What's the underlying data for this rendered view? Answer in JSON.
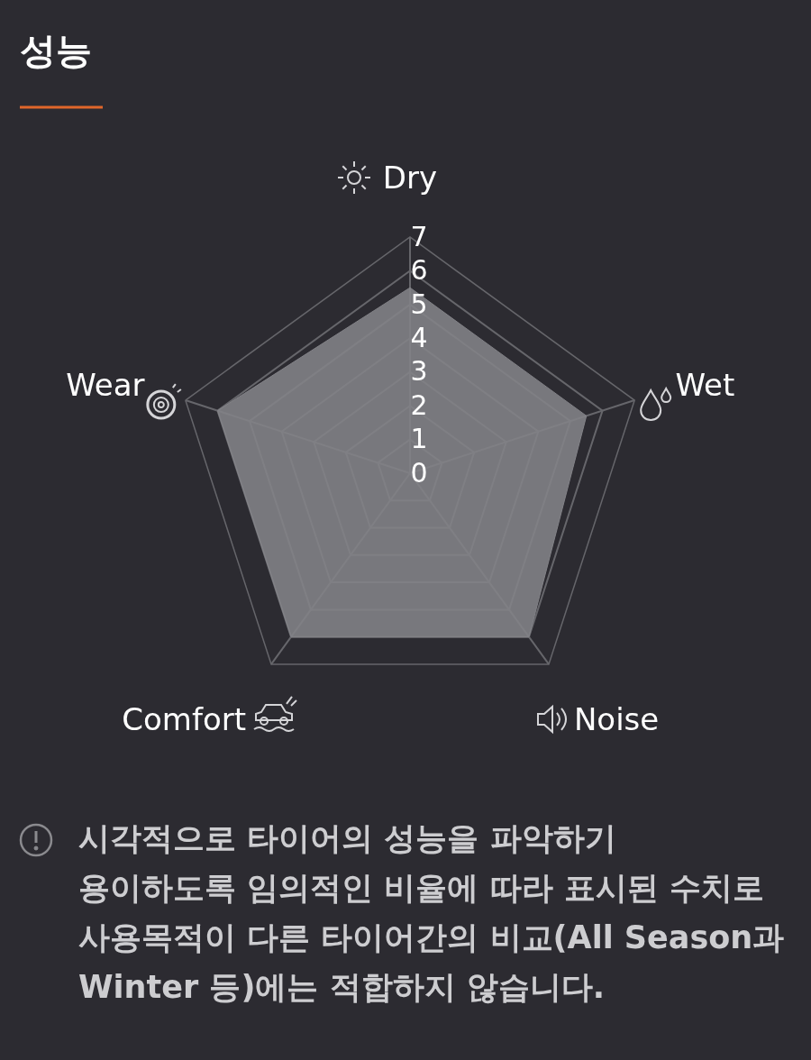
{
  "chart_data": {
    "type": "radar",
    "title": "성능",
    "categories": [
      "Dry",
      "Wet",
      "Noise",
      "Comfort",
      "Wear"
    ],
    "series": [
      {
        "color": "#838388",
        "values": [
          5.5,
          5.5,
          6,
          6,
          6
        ]
      }
    ],
    "ylim": [
      0,
      7
    ],
    "yticks": [
      0,
      1,
      2,
      3,
      4,
      5,
      6,
      7
    ],
    "grid": true,
    "annotations": [
      "시각적으로 타이어의 성능을 파악하기\n용이하도록 임의적인 비율에 따라 표시된 수치로\n사용목적이 다른 타이어간의 비교(All Season과\nWinter 등)에는 적합하지 않습니다."
    ]
  }
}
